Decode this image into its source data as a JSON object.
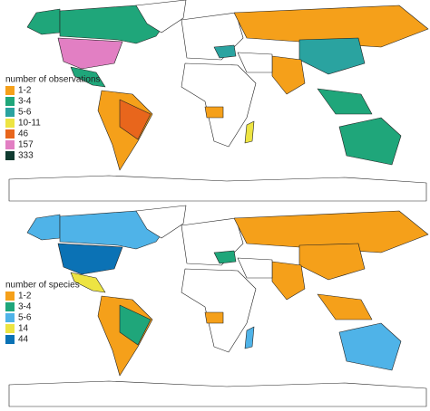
{
  "maps": [
    {
      "legend_title": "number of observations",
      "legend": [
        {
          "label": "1-2",
          "color": "#f5a01a"
        },
        {
          "label": "3-4",
          "color": "#1fa67a"
        },
        {
          "label": "5-6",
          "color": "#2aa3a0"
        },
        {
          "label": "10-11",
          "color": "#ede442"
        },
        {
          "label": "46",
          "color": "#e8661c"
        },
        {
          "label": "157",
          "color": "#e27fc3"
        },
        {
          "label": "333",
          "color": "#0f3b30"
        }
      ]
    },
    {
      "legend_title": "number of species",
      "legend": [
        {
          "label": "1-2",
          "color": "#f5a01a"
        },
        {
          "label": "3-4",
          "color": "#1fa67a"
        },
        {
          "label": "5-6",
          "color": "#4fb3e8"
        },
        {
          "label": "14",
          "color": "#ede442"
        },
        {
          "label": "44",
          "color": "#0b72b5"
        }
      ]
    }
  ]
}
